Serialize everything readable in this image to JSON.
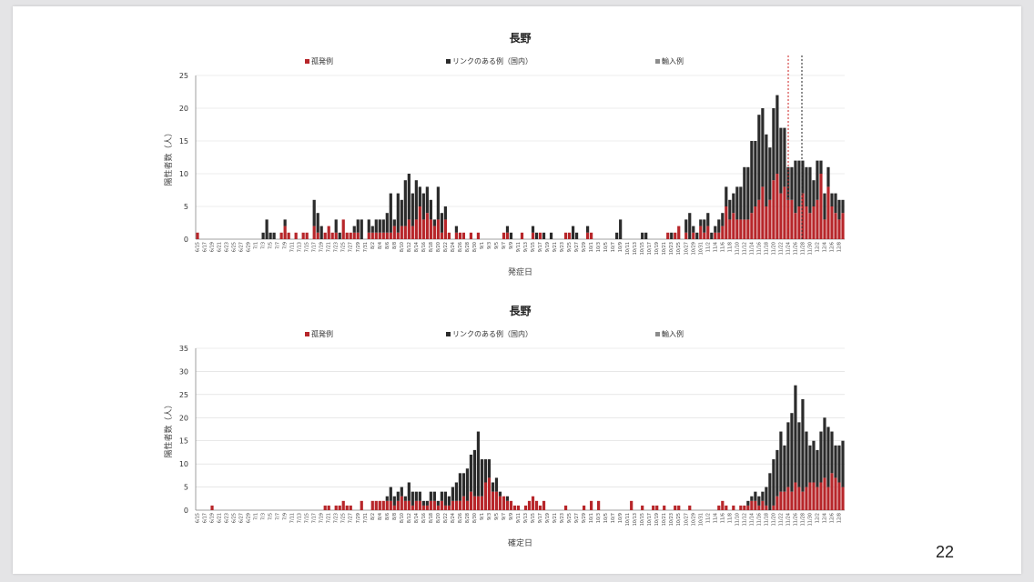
{
  "page_number": "22",
  "colors": {
    "sporadic": "#b7262a",
    "linked": "#2b2b2b",
    "imported": "#8c8c8c",
    "red_line": "#cc2222",
    "black_line": "#222222"
  },
  "chart_data": [
    {
      "type": "bar",
      "stacked": true,
      "title": "長野",
      "xlabel": "発症日",
      "ylabel": "陽性者数（人）",
      "ylim": [
        0,
        25
      ],
      "yticks": [
        0,
        5,
        10,
        15,
        20,
        25
      ],
      "grid": true,
      "legend": {
        "placement": "top",
        "entries": [
          "孤発例",
          "リンクのある例（国内）",
          "輸入例"
        ]
      },
      "start_date": "6/15",
      "categories_start": "2020-06-15",
      "categories_end": "2020-12-09",
      "tick_every": 2,
      "reference_lines": [
        {
          "date": "12/24",
          "color": "red",
          "style": "dashed"
        },
        {
          "date": "12/27",
          "color": "black",
          "style": "dashed"
        }
      ],
      "series": [
        {
          "name": "孤発例",
          "values": [
            1,
            0,
            0,
            0,
            0,
            0,
            0,
            0,
            0,
            0,
            0,
            0,
            0,
            0,
            0,
            0,
            0,
            0,
            0,
            0,
            0,
            0,
            0,
            1,
            2,
            1,
            0,
            1,
            0,
            1,
            1,
            0,
            2,
            1,
            0,
            1,
            2,
            1,
            1,
            0,
            3,
            1,
            1,
            1,
            1,
            0,
            0,
            1,
            1,
            1,
            1,
            1,
            1,
            1,
            2,
            1,
            2,
            2,
            3,
            2,
            3,
            5,
            3,
            4,
            3,
            2,
            3,
            1,
            3,
            1,
            0,
            1,
            1,
            1,
            0,
            1,
            0,
            1,
            0,
            0,
            0,
            0,
            0,
            0,
            1,
            1,
            0,
            0,
            0,
            1,
            0,
            0,
            1,
            0,
            1,
            0,
            0,
            0,
            0,
            0,
            0,
            1,
            1,
            0,
            0,
            0,
            0,
            1,
            1,
            0,
            0,
            0,
            0,
            0,
            0,
            0,
            0,
            0,
            0,
            0,
            0,
            0,
            0,
            0,
            0,
            0,
            0,
            0,
            0,
            1,
            0,
            1,
            2,
            0,
            1,
            0,
            1,
            0,
            2,
            1,
            2,
            0,
            1,
            1,
            2,
            5,
            3,
            4,
            3,
            3,
            3,
            3,
            4,
            5,
            6,
            8,
            5,
            6,
            9,
            10,
            7,
            8,
            6,
            6,
            4,
            5,
            7,
            5,
            4,
            5,
            6,
            10,
            3,
            8,
            5,
            4,
            3,
            4,
            3,
            5,
            2,
            3,
            1,
            1
          ]
        },
        {
          "name": "リンクのある例（国内）",
          "values": [
            0,
            0,
            0,
            0,
            0,
            0,
            0,
            0,
            0,
            0,
            0,
            0,
            0,
            0,
            0,
            0,
            0,
            0,
            1,
            3,
            1,
            1,
            0,
            0,
            1,
            0,
            0,
            0,
            0,
            0,
            0,
            0,
            4,
            3,
            2,
            0,
            0,
            0,
            2,
            1,
            0,
            0,
            0,
            1,
            2,
            3,
            0,
            2,
            1,
            2,
            2,
            2,
            3,
            6,
            1,
            6,
            4,
            7,
            7,
            5,
            6,
            3,
            4,
            4,
            3,
            1,
            5,
            3,
            2,
            0,
            0,
            1,
            0,
            0,
            0,
            0,
            0,
            0,
            0,
            0,
            0,
            0,
            0,
            0,
            0,
            1,
            1,
            0,
            0,
            0,
            0,
            0,
            1,
            1,
            0,
            1,
            0,
            1,
            0,
            0,
            0,
            0,
            0,
            2,
            1,
            0,
            0,
            1,
            0,
            0,
            0,
            0,
            0,
            0,
            0,
            1,
            3,
            0,
            0,
            0,
            0,
            0,
            1,
            1,
            0,
            0,
            0,
            0,
            0,
            0,
            1,
            0,
            0,
            0,
            2,
            4,
            1,
            1,
            1,
            2,
            2,
            1,
            1,
            2,
            2,
            3,
            3,
            3,
            5,
            5,
            8,
            8,
            11,
            10,
            13,
            12,
            11,
            8,
            11,
            12,
            10,
            9,
            5,
            5,
            8,
            7,
            5,
            6,
            7,
            4,
            6,
            2,
            4,
            3,
            2,
            3,
            3,
            2,
            2,
            1,
            1,
            2
          ]
        },
        {
          "name": "輸入例",
          "values": [
            0,
            0,
            0,
            0,
            0,
            0,
            0,
            0,
            0,
            0,
            0,
            0,
            0,
            0,
            0,
            0,
            0,
            0,
            0,
            0,
            0,
            0,
            0,
            0,
            0,
            0,
            0,
            0,
            0,
            0,
            0,
            0,
            0,
            0,
            0,
            0,
            0,
            0,
            0,
            0,
            0,
            0,
            0,
            0,
            0,
            0,
            0,
            0,
            0,
            0,
            0,
            0,
            0,
            0,
            0,
            0,
            0,
            0,
            0,
            0,
            0,
            0,
            0,
            0,
            0,
            0,
            0,
            0,
            0,
            0,
            0,
            0,
            0,
            0,
            0,
            0,
            0,
            0,
            0,
            0,
            0,
            0,
            0,
            0,
            0,
            0,
            0,
            0,
            0,
            0,
            0,
            0,
            0,
            0,
            0,
            0,
            0,
            0,
            0,
            0,
            0,
            0,
            0,
            0,
            0,
            0,
            0,
            0,
            0,
            0,
            0,
            0,
            0,
            0,
            0,
            0,
            0,
            0,
            0,
            0,
            0,
            0,
            0,
            0,
            0,
            0,
            0,
            0,
            0,
            0,
            0,
            0,
            0,
            0,
            0,
            0,
            0,
            0,
            0,
            0,
            0,
            0,
            0,
            0,
            0,
            0,
            0,
            0,
            0,
            0,
            0,
            0,
            0,
            0,
            0,
            0,
            0,
            0,
            0,
            0,
            0,
            0,
            0,
            0,
            0,
            0,
            0,
            0,
            0,
            0,
            0,
            0,
            0,
            0,
            0,
            0,
            0,
            0,
            0,
            0,
            0,
            0
          ]
        }
      ]
    },
    {
      "type": "bar",
      "stacked": true,
      "title": "長野",
      "xlabel": "確定日",
      "ylabel": "陽性者数（人）",
      "ylim": [
        0,
        35
      ],
      "yticks": [
        0,
        5,
        10,
        15,
        20,
        25,
        30,
        35
      ],
      "grid": true,
      "legend": {
        "placement": "top",
        "entries": [
          "孤発例",
          "リンクのある例（国内）",
          "輸入例"
        ]
      },
      "start_date": "6/15",
      "categories_start": "2020-06-15",
      "categories_end": "2020-12-09",
      "tick_every": 2,
      "series": [
        {
          "name": "孤発例",
          "values": [
            0,
            0,
            0,
            0,
            1,
            0,
            0,
            0,
            0,
            0,
            0,
            0,
            0,
            0,
            0,
            0,
            0,
            0,
            0,
            0,
            0,
            0,
            0,
            0,
            0,
            0,
            0,
            0,
            0,
            0,
            0,
            0,
            0,
            0,
            0,
            1,
            1,
            0,
            1,
            1,
            2,
            1,
            1,
            0,
            0,
            2,
            0,
            0,
            2,
            2,
            2,
            2,
            2,
            2,
            1,
            2,
            3,
            2,
            2,
            1,
            2,
            2,
            1,
            1,
            2,
            2,
            1,
            2,
            1,
            1,
            2,
            2,
            2,
            3,
            2,
            4,
            3,
            3,
            3,
            6,
            7,
            4,
            4,
            3,
            3,
            2,
            2,
            1,
            1,
            0,
            1,
            2,
            3,
            2,
            1,
            2,
            0,
            0,
            0,
            0,
            0,
            1,
            0,
            0,
            0,
            0,
            1,
            0,
            2,
            0,
            2,
            0,
            0,
            0,
            0,
            0,
            0,
            0,
            0,
            2,
            0,
            0,
            1,
            0,
            0,
            1,
            1,
            0,
            1,
            0,
            0,
            1,
            1,
            0,
            0,
            1,
            0,
            0,
            0,
            0,
            0,
            0,
            0,
            1,
            2,
            1,
            0,
            1,
            0,
            1,
            1,
            1,
            2,
            2,
            1,
            2,
            1,
            0,
            1,
            3,
            4,
            4,
            5,
            4,
            6,
            5,
            4,
            5,
            6,
            6,
            5,
            6,
            7,
            5,
            8,
            7,
            6,
            5,
            7,
            4,
            5,
            10
          ]
        },
        {
          "name": "リンクのある例（国内）",
          "values": [
            0,
            0,
            0,
            0,
            0,
            0,
            0,
            0,
            0,
            0,
            0,
            0,
            0,
            0,
            0,
            0,
            0,
            0,
            0,
            0,
            0,
            0,
            0,
            0,
            0,
            0,
            0,
            0,
            0,
            0,
            0,
            0,
            0,
            0,
            0,
            0,
            0,
            0,
            0,
            0,
            0,
            0,
            0,
            0,
            0,
            0,
            0,
            0,
            0,
            0,
            0,
            0,
            1,
            3,
            2,
            2,
            2,
            1,
            4,
            3,
            2,
            2,
            1,
            1,
            2,
            2,
            1,
            2,
            3,
            2,
            3,
            4,
            6,
            5,
            7,
            8,
            10,
            14,
            8,
            5,
            4,
            2,
            3,
            1,
            0,
            1,
            0,
            0,
            0,
            0,
            0,
            0,
            0,
            0,
            0,
            0,
            0,
            0,
            0,
            0,
            0,
            0,
            0,
            0,
            0,
            0,
            0,
            0,
            0,
            0,
            0,
            0,
            0,
            0,
            0,
            0,
            0,
            0,
            0,
            0,
            0,
            0,
            0,
            0,
            0,
            0,
            0,
            0,
            0,
            0,
            0,
            0,
            0,
            0,
            0,
            0,
            0,
            0,
            0,
            0,
            0,
            0,
            0,
            0,
            0,
            0,
            0,
            0,
            0,
            0,
            0,
            1,
            1,
            2,
            2,
            2,
            4,
            8,
            10,
            10,
            13,
            10,
            14,
            17,
            21,
            14,
            20,
            12,
            8,
            9,
            8,
            11,
            13,
            13,
            9,
            7,
            8,
            10,
            9,
            11,
            12,
            10,
            12,
            10
          ]
        },
        {
          "name": "輸入例",
          "values": [
            0,
            0,
            0,
            0,
            0,
            0,
            0,
            0,
            0,
            0,
            0,
            0,
            0,
            0,
            0,
            0,
            0,
            0,
            0,
            0,
            0,
            0,
            0,
            0,
            0,
            0,
            0,
            0,
            0,
            0,
            0,
            0,
            0,
            0,
            0,
            0,
            0,
            0,
            0,
            0,
            0,
            0,
            0,
            0,
            0,
            0,
            0,
            0,
            0,
            0,
            0,
            0,
            0,
            0,
            0,
            0,
            0,
            0,
            0,
            0,
            0,
            0,
            0,
            0,
            0,
            0,
            0,
            0,
            0,
            0,
            0,
            0,
            0,
            0,
            0,
            0,
            0,
            0,
            0,
            0,
            0,
            0,
            0,
            0,
            0,
            0,
            0,
            0,
            0,
            0,
            0,
            0,
            0,
            0,
            0,
            0,
            0,
            0,
            0,
            0,
            0,
            0,
            0,
            0,
            0,
            0,
            0,
            0,
            0,
            0,
            0,
            0,
            0,
            0,
            0,
            0,
            0,
            0,
            0,
            0,
            0,
            0,
            0,
            0,
            0,
            0,
            0,
            0,
            0,
            0,
            0,
            0,
            0,
            0,
            0,
            0,
            0,
            0,
            0,
            0,
            0,
            0,
            0,
            0,
            0,
            0,
            0,
            0,
            0,
            0,
            0,
            0,
            0,
            0,
            0,
            0,
            0,
            0,
            0,
            0,
            0,
            0,
            0,
            0,
            0,
            0,
            0,
            0,
            0,
            0,
            0,
            0,
            0,
            0,
            0,
            0,
            0,
            0,
            0,
            0,
            0,
            0
          ]
        }
      ]
    }
  ]
}
